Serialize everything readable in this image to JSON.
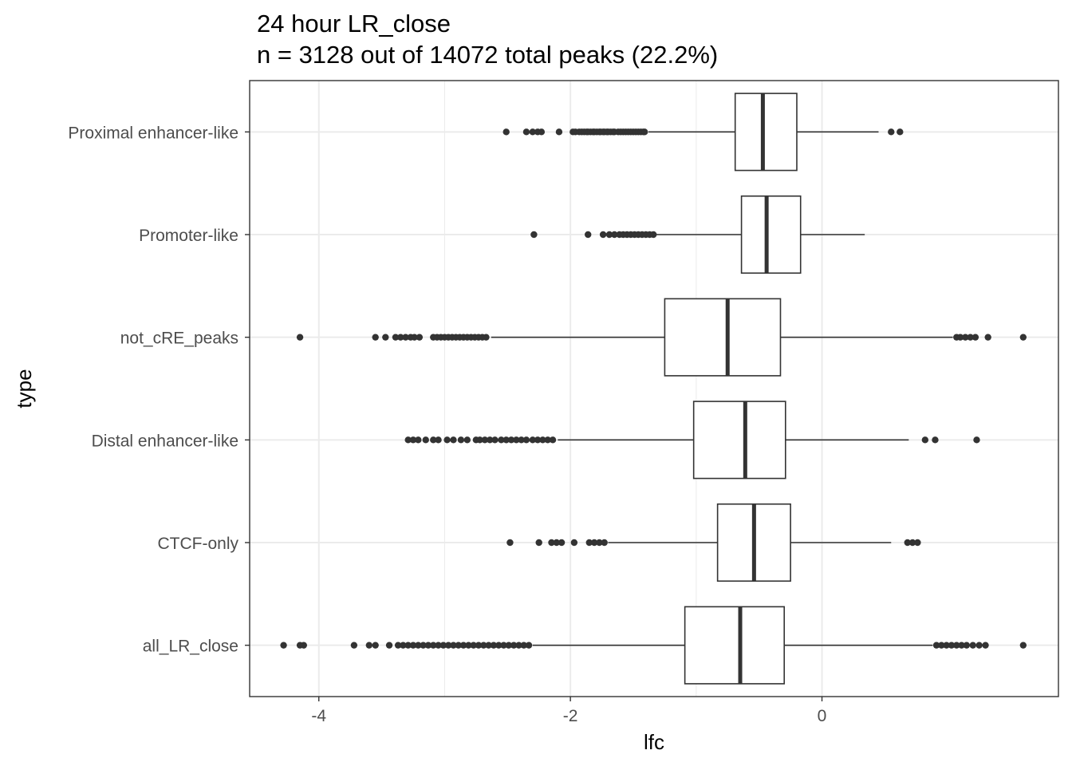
{
  "chart_data": {
    "type": "boxplot",
    "orientation": "horizontal",
    "title": "24 hour LR_close",
    "subtitle": "n = 3128 out of 14072 total peaks (22.2%)",
    "xlabel": "lfc",
    "ylabel": "type",
    "xlim": [
      -4.55,
      1.88
    ],
    "x_ticks": [
      -4,
      -2,
      0
    ],
    "x_tick_labels": [
      "-4",
      "-2",
      "0"
    ],
    "grid": true,
    "legend": "none",
    "colors": {
      "box_fill": "#ffffff",
      "line": "#333333",
      "grid": "#ebebeb",
      "panel_border": "#333333"
    },
    "categories": [
      "Proximal enhancer-like",
      "Promoter-like",
      "not_cRE_peaks",
      "Distal enhancer-like",
      "CTCF-only",
      "all_LR_close"
    ],
    "boxes": [
      {
        "category": "Proximal enhancer-like",
        "whisker_low": -1.38,
        "q1": -0.69,
        "median": -0.47,
        "q3": -0.2,
        "whisker_high": 0.45,
        "outliers": [
          -2.51,
          -2.35,
          -2.3,
          -2.26,
          -2.23,
          -2.09,
          -1.98,
          -1.96,
          -1.93,
          -1.91,
          -1.89,
          -1.87,
          -1.86,
          -1.84,
          -1.82,
          -1.81,
          -1.79,
          -1.77,
          -1.76,
          -1.74,
          -1.73,
          -1.71,
          -1.7,
          -1.68,
          -1.66,
          -1.65,
          -1.62,
          -1.6,
          -1.58,
          -1.56,
          -1.54,
          -1.52,
          -1.5,
          -1.48,
          -1.46,
          -1.44,
          -1.42,
          -1.41,
          0.55,
          0.62
        ]
      },
      {
        "category": "Promoter-like",
        "whisker_low": -1.32,
        "q1": -0.64,
        "median": -0.44,
        "q3": -0.17,
        "whisker_high": 0.34,
        "outliers": [
          -2.29,
          -1.86,
          -1.74,
          -1.69,
          -1.65,
          -1.61,
          -1.58,
          -1.55,
          -1.52,
          -1.49,
          -1.46,
          -1.43,
          -1.4,
          -1.37,
          -1.34
        ]
      },
      {
        "category": "not_cRE_peaks",
        "whisker_low": -2.63,
        "q1": -1.25,
        "median": -0.75,
        "q3": -0.33,
        "whisker_high": 1.04,
        "outliers": [
          -4.15,
          -3.55,
          -3.47,
          -3.39,
          -3.35,
          -3.31,
          -3.27,
          -3.24,
          -3.2,
          -3.09,
          -3.06,
          -3.03,
          -3.0,
          -2.97,
          -2.94,
          -2.91,
          -2.88,
          -2.85,
          -2.82,
          -2.79,
          -2.76,
          -2.73,
          -2.7,
          -2.67,
          1.07,
          1.1,
          1.14,
          1.18,
          1.22,
          1.32,
          1.6
        ]
      },
      {
        "category": "Distal enhancer-like",
        "whisker_low": -2.1,
        "q1": -1.02,
        "median": -0.61,
        "q3": -0.29,
        "whisker_high": 0.69,
        "outliers": [
          -3.29,
          -3.25,
          -3.21,
          -3.15,
          -3.09,
          -3.05,
          -2.98,
          -2.93,
          -2.87,
          -2.82,
          -2.75,
          -2.72,
          -2.68,
          -2.64,
          -2.6,
          -2.55,
          -2.51,
          -2.47,
          -2.43,
          -2.39,
          -2.35,
          -2.3,
          -2.26,
          -2.22,
          -2.18,
          -2.14,
          0.82,
          0.9,
          1.23
        ]
      },
      {
        "category": "CTCF-only",
        "whisker_low": -1.7,
        "q1": -0.83,
        "median": -0.54,
        "q3": -0.25,
        "whisker_high": 0.55,
        "outliers": [
          -2.48,
          -2.25,
          -2.15,
          -2.11,
          -2.07,
          -1.97,
          -1.85,
          -1.81,
          -1.77,
          -1.73,
          0.68,
          0.72,
          0.76
        ]
      },
      {
        "category": "all_LR_close",
        "whisker_low": -2.3,
        "q1": -1.09,
        "median": -0.65,
        "q3": -0.3,
        "whisker_high": 0.88,
        "outliers": [
          -4.28,
          -4.15,
          -4.12,
          -3.72,
          -3.6,
          -3.55,
          -3.44,
          -3.37,
          -3.33,
          -3.29,
          -3.25,
          -3.21,
          -3.17,
          -3.13,
          -3.09,
          -3.05,
          -3.01,
          -2.97,
          -2.93,
          -2.89,
          -2.85,
          -2.81,
          -2.77,
          -2.73,
          -2.69,
          -2.65,
          -2.61,
          -2.57,
          -2.53,
          -2.49,
          -2.45,
          -2.41,
          -2.37,
          -2.33,
          0.91,
          0.95,
          0.99,
          1.03,
          1.07,
          1.11,
          1.15,
          1.2,
          1.25,
          1.3,
          1.6
        ]
      }
    ]
  }
}
